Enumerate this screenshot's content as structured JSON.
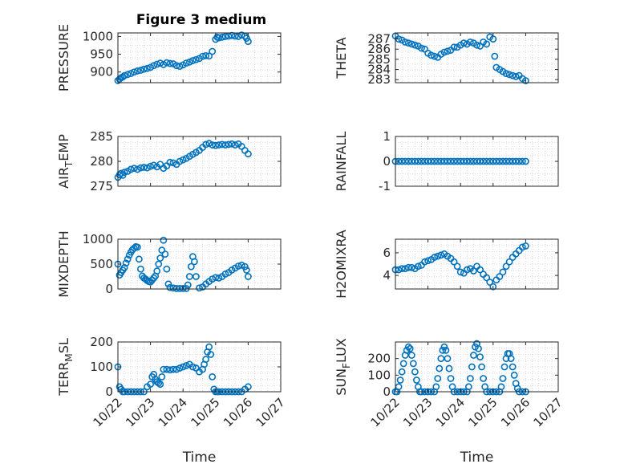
{
  "figure_title": "Figure 3 medium",
  "colors": {
    "marker": "#0072BD",
    "axis": "#262626",
    "grid": "#dcdcdc"
  },
  "chart_data": [
    {
      "type": "scatter",
      "id": "pressure",
      "title": "Figure 3 medium",
      "ylabel": "PRESSURE",
      "ylabel_sub": "",
      "xlabel": "",
      "xlim": [
        0,
        5
      ],
      "ylim": [
        870,
        1010
      ],
      "yticks": [
        900,
        950,
        1000
      ],
      "ytick_labels": [
        "900",
        "950",
        "1000"
      ],
      "x_dates": [
        "10/22",
        "10/23",
        "10/24",
        "10/25",
        "10/26",
        "10/27"
      ],
      "show_xtick_labels": false,
      "series": [
        {
          "x": [
            0.0,
            0.05,
            0.1,
            0.15,
            0.2,
            0.3,
            0.4,
            0.5,
            0.6,
            0.7,
            0.8,
            0.9,
            1.0,
            1.1,
            1.2,
            1.3,
            1.4,
            1.5,
            1.6,
            1.7,
            1.8,
            1.9,
            2.0,
            2.1,
            2.2,
            2.3,
            2.4,
            2.5,
            2.6,
            2.7,
            2.8,
            2.9,
            3.0,
            3.05,
            3.1,
            3.2,
            3.3,
            3.4,
            3.5,
            3.6,
            3.7,
            3.8,
            3.9,
            3.95,
            4.0
          ],
          "y": [
            876,
            880,
            884,
            886,
            890,
            893,
            896,
            900,
            903,
            905,
            908,
            910,
            913,
            918,
            922,
            925,
            921,
            926,
            924,
            923,
            918,
            916,
            920,
            925,
            928,
            932,
            935,
            938,
            944,
            946,
            945,
            958,
            992,
            998,
            996,
            998,
            1000,
            1001,
            1003,
            1001,
            1000,
            1004,
            1001,
            995,
            986
          ]
        }
      ]
    },
    {
      "type": "scatter",
      "id": "theta",
      "ylabel": "THETA",
      "ylabel_sub": "",
      "xlabel": "",
      "xlim": [
        0,
        5
      ],
      "ylim": [
        282.7,
        287.6
      ],
      "yticks": [
        283,
        284,
        285,
        286,
        287
      ],
      "ytick_labels": [
        "283",
        "284",
        "285",
        "286",
        "287"
      ],
      "x_dates": [
        "10/22",
        "10/23",
        "10/24",
        "10/25",
        "10/26",
        "10/27"
      ],
      "show_xtick_labels": false,
      "series": [
        {
          "x": [
            0.0,
            0.1,
            0.2,
            0.3,
            0.4,
            0.5,
            0.6,
            0.7,
            0.8,
            0.9,
            1.0,
            1.1,
            1.2,
            1.3,
            1.4,
            1.5,
            1.6,
            1.7,
            1.8,
            1.9,
            2.0,
            2.1,
            2.2,
            2.3,
            2.4,
            2.5,
            2.6,
            2.7,
            2.8,
            2.9,
            3.0,
            3.05,
            3.1,
            3.2,
            3.3,
            3.4,
            3.5,
            3.6,
            3.7,
            3.8,
            3.9,
            4.0
          ],
          "y": [
            287.3,
            287.0,
            286.9,
            286.7,
            286.6,
            286.5,
            286.4,
            286.3,
            286.1,
            286.0,
            285.6,
            285.4,
            285.3,
            285.2,
            285.5,
            285.7,
            285.8,
            285.9,
            286.2,
            286.2,
            286.4,
            286.6,
            286.5,
            286.7,
            286.6,
            286.4,
            286.3,
            286.7,
            286.5,
            287.2,
            287.0,
            285.3,
            284.2,
            284.0,
            283.8,
            283.6,
            283.5,
            283.4,
            283.3,
            283.4,
            283.1,
            282.9
          ]
        }
      ]
    },
    {
      "type": "scatter",
      "id": "air_temp",
      "ylabel": "AIR",
      "ylabel_sub": "T",
      "ylabel_after": "EMP",
      "xlabel": "",
      "xlim": [
        0,
        5
      ],
      "ylim": [
        275,
        285
      ],
      "yticks": [
        275,
        280,
        285
      ],
      "ytick_labels": [
        "275",
        "280",
        "285"
      ],
      "x_dates": [
        "10/22",
        "10/23",
        "10/24",
        "10/25",
        "10/26",
        "10/27"
      ],
      "show_xtick_labels": false,
      "series": [
        {
          "x": [
            0.0,
            0.05,
            0.1,
            0.15,
            0.2,
            0.3,
            0.4,
            0.5,
            0.6,
            0.7,
            0.8,
            0.9,
            1.0,
            1.1,
            1.2,
            1.3,
            1.4,
            1.5,
            1.6,
            1.7,
            1.8,
            1.9,
            2.0,
            2.1,
            2.2,
            2.3,
            2.4,
            2.5,
            2.6,
            2.7,
            2.8,
            2.9,
            3.0,
            3.1,
            3.2,
            3.3,
            3.4,
            3.5,
            3.6,
            3.7,
            3.8,
            3.9,
            4.0
          ],
          "y": [
            276.8,
            277.3,
            277.6,
            277.2,
            277.8,
            278.0,
            278.4,
            278.6,
            278.4,
            278.7,
            278.8,
            278.7,
            279.0,
            279.2,
            278.9,
            279.4,
            278.6,
            279.1,
            279.8,
            279.7,
            279.4,
            280.0,
            280.3,
            280.6,
            281.0,
            281.4,
            281.8,
            282.2,
            282.8,
            283.4,
            283.6,
            283.3,
            283.2,
            283.3,
            283.4,
            283.3,
            283.4,
            283.5,
            283.3,
            283.5,
            283.0,
            282.2,
            281.5
          ]
        }
      ]
    },
    {
      "type": "scatter",
      "id": "rainfall",
      "ylabel": "RAINFALL",
      "ylabel_sub": "",
      "xlabel": "",
      "xlim": [
        0,
        5
      ],
      "ylim": [
        -1,
        1
      ],
      "yticks": [
        -1,
        0,
        1
      ],
      "ytick_labels": [
        "-1",
        "0",
        "1"
      ],
      "x_dates": [
        "10/22",
        "10/23",
        "10/24",
        "10/25",
        "10/26",
        "10/27"
      ],
      "show_xtick_labels": false,
      "series": [
        {
          "x": [
            0.0,
            0.1,
            0.2,
            0.3,
            0.4,
            0.5,
            0.6,
            0.7,
            0.8,
            0.9,
            1.0,
            1.1,
            1.2,
            1.3,
            1.4,
            1.5,
            1.6,
            1.7,
            1.8,
            1.9,
            2.0,
            2.1,
            2.2,
            2.3,
            2.4,
            2.5,
            2.6,
            2.7,
            2.8,
            2.9,
            3.0,
            3.1,
            3.2,
            3.3,
            3.4,
            3.5,
            3.6,
            3.7,
            3.8,
            3.9,
            4.0
          ],
          "y": [
            0,
            0,
            0,
            0,
            0,
            0,
            0,
            0,
            0,
            0,
            0,
            0,
            0,
            0,
            0,
            0,
            0,
            0,
            0,
            0,
            0,
            0,
            0,
            0,
            0,
            0,
            0,
            0,
            0,
            0,
            0,
            0,
            0,
            0,
            0,
            0,
            0,
            0,
            0,
            0,
            0
          ]
        }
      ]
    },
    {
      "type": "scatter",
      "id": "mixdepth",
      "ylabel": "MIXDEPTH",
      "ylabel_sub": "",
      "xlabel": "",
      "xlim": [
        0,
        5
      ],
      "ylim": [
        0,
        1000
      ],
      "yticks": [
        0,
        500,
        1000
      ],
      "ytick_labels": [
        "0",
        "500",
        "1000"
      ],
      "x_dates": [
        "10/22",
        "10/23",
        "10/24",
        "10/25",
        "10/26",
        "10/27"
      ],
      "show_xtick_labels": false,
      "series": [
        {
          "x": [
            0.0,
            0.05,
            0.1,
            0.15,
            0.2,
            0.25,
            0.3,
            0.35,
            0.4,
            0.45,
            0.5,
            0.55,
            0.6,
            0.65,
            0.7,
            0.75,
            0.8,
            0.85,
            0.9,
            0.95,
            1.0,
            1.05,
            1.1,
            1.15,
            1.2,
            1.25,
            1.3,
            1.35,
            1.4,
            1.45,
            1.5,
            1.55,
            1.6,
            1.7,
            1.8,
            1.9,
            2.0,
            2.1,
            2.15,
            2.2,
            2.25,
            2.3,
            2.35,
            2.4,
            2.5,
            2.6,
            2.7,
            2.8,
            2.9,
            3.0,
            3.1,
            3.2,
            3.3,
            3.4,
            3.5,
            3.6,
            3.7,
            3.8,
            3.9,
            3.95,
            4.0
          ],
          "y": [
            500,
            280,
            330,
            380,
            430,
            520,
            600,
            680,
            740,
            790,
            820,
            850,
            840,
            600,
            400,
            260,
            220,
            200,
            170,
            150,
            140,
            180,
            220,
            260,
            360,
            500,
            620,
            780,
            980,
            700,
            400,
            100,
            30,
            20,
            10,
            10,
            10,
            10,
            80,
            250,
            450,
            650,
            550,
            250,
            20,
            40,
            100,
            150,
            200,
            230,
            220,
            250,
            300,
            330,
            380,
            420,
            460,
            480,
            450,
            380,
            250
          ]
        }
      ]
    },
    {
      "type": "scatter",
      "id": "h2omixra",
      "ylabel": "H2OMIXRA",
      "ylabel_sub": "",
      "xlabel": "",
      "xlim": [
        0,
        5
      ],
      "ylim": [
        2.8,
        7.2
      ],
      "yticks": [
        4,
        6
      ],
      "ytick_labels": [
        "4",
        "6"
      ],
      "x_dates": [
        "10/22",
        "10/23",
        "10/24",
        "10/25",
        "10/26",
        "10/27"
      ],
      "show_xtick_labels": false,
      "series": [
        {
          "x": [
            0.0,
            0.1,
            0.2,
            0.3,
            0.4,
            0.5,
            0.6,
            0.7,
            0.8,
            0.9,
            1.0,
            1.1,
            1.2,
            1.3,
            1.4,
            1.5,
            1.6,
            1.7,
            1.8,
            1.9,
            2.0,
            2.1,
            2.2,
            2.3,
            2.4,
            2.5,
            2.6,
            2.7,
            2.8,
            2.9,
            3.0,
            3.1,
            3.2,
            3.3,
            3.4,
            3.5,
            3.6,
            3.7,
            3.8,
            3.9,
            4.0
          ],
          "y": [
            4.5,
            4.5,
            4.6,
            4.6,
            4.7,
            4.7,
            4.6,
            4.8,
            4.9,
            5.2,
            5.3,
            5.4,
            5.6,
            5.7,
            5.8,
            5.9,
            5.7,
            5.5,
            5.2,
            4.8,
            4.3,
            4.2,
            4.5,
            4.6,
            4.4,
            4.8,
            4.5,
            4.1,
            3.8,
            3.4,
            3.0,
            3.6,
            3.9,
            4.3,
            4.8,
            5.2,
            5.6,
            5.9,
            6.2,
            6.5,
            6.6
          ]
        }
      ]
    },
    {
      "type": "scatter",
      "id": "terr_msl",
      "ylabel": "TERR",
      "ylabel_sub": "M",
      "ylabel_after": "SL",
      "xlabel": "Time",
      "xlim": [
        0,
        5
      ],
      "ylim": [
        0,
        200
      ],
      "yticks": [
        0,
        100,
        200
      ],
      "ytick_labels": [
        "0",
        "100",
        "200"
      ],
      "x_dates": [
        "10/22",
        "10/23",
        "10/24",
        "10/25",
        "10/26",
        "10/27"
      ],
      "show_xtick_labels": true,
      "series": [
        {
          "x": [
            0.0,
            0.05,
            0.1,
            0.15,
            0.2,
            0.3,
            0.4,
            0.5,
            0.6,
            0.7,
            0.8,
            0.9,
            1.0,
            1.05,
            1.1,
            1.15,
            1.2,
            1.25,
            1.3,
            1.35,
            1.4,
            1.5,
            1.6,
            1.7,
            1.8,
            1.9,
            2.0,
            2.1,
            2.2,
            2.3,
            2.4,
            2.5,
            2.6,
            2.65,
            2.7,
            2.75,
            2.8,
            2.85,
            2.9,
            2.95,
            3.0,
            3.05,
            3.1,
            3.2,
            3.3,
            3.4,
            3.5,
            3.6,
            3.7,
            3.8,
            3.9,
            4.0
          ],
          "y": [
            100,
            20,
            10,
            0,
            0,
            0,
            0,
            0,
            0,
            0,
            0,
            20,
            30,
            60,
            70,
            50,
            40,
            35,
            30,
            60,
            90,
            90,
            88,
            90,
            90,
            95,
            100,
            105,
            110,
            100,
            95,
            80,
            90,
            110,
            130,
            160,
            180,
            150,
            60,
            10,
            0,
            0,
            0,
            0,
            0,
            0,
            0,
            0,
            0,
            0,
            10,
            20
          ]
        }
      ]
    },
    {
      "type": "scatter",
      "id": "sun_flux",
      "ylabel": "SUN",
      "ylabel_sub": "F",
      "ylabel_after": "LUX",
      "xlabel": "Time",
      "xlim": [
        0,
        5
      ],
      "ylim": [
        0,
        300
      ],
      "yticks": [
        0,
        100,
        200
      ],
      "ytick_labels": [
        "0",
        "100",
        "200"
      ],
      "x_dates": [
        "10/22",
        "10/23",
        "10/24",
        "10/25",
        "10/26",
        "10/27"
      ],
      "show_xtick_labels": true,
      "series": [
        {
          "x": [
            0.0,
            0.05,
            0.1,
            0.15,
            0.2,
            0.25,
            0.3,
            0.35,
            0.4,
            0.45,
            0.5,
            0.55,
            0.6,
            0.65,
            0.7,
            0.75,
            0.8,
            0.9,
            1.0,
            1.1,
            1.2,
            1.25,
            1.3,
            1.35,
            1.4,
            1.45,
            1.5,
            1.55,
            1.6,
            1.65,
            1.7,
            1.75,
            1.8,
            1.9,
            2.0,
            2.1,
            2.2,
            2.25,
            2.3,
            2.35,
            2.4,
            2.45,
            2.5,
            2.55,
            2.6,
            2.65,
            2.7,
            2.75,
            2.8,
            2.9,
            3.0,
            3.1,
            3.2,
            3.25,
            3.3,
            3.35,
            3.4,
            3.45,
            3.5,
            3.55,
            3.6,
            3.65,
            3.7,
            3.75,
            3.8,
            3.9,
            4.0
          ],
          "y": [
            0,
            0,
            30,
            70,
            120,
            170,
            220,
            250,
            270,
            260,
            220,
            170,
            120,
            70,
            30,
            0,
            0,
            0,
            0,
            0,
            0,
            30,
            80,
            140,
            200,
            250,
            270,
            250,
            200,
            140,
            80,
            30,
            0,
            0,
            0,
            0,
            0,
            30,
            80,
            150,
            220,
            270,
            290,
            260,
            210,
            150,
            80,
            30,
            0,
            0,
            0,
            0,
            0,
            30,
            80,
            150,
            200,
            230,
            230,
            200,
            150,
            100,
            50,
            20,
            0,
            0,
            0
          ]
        }
      ]
    }
  ]
}
